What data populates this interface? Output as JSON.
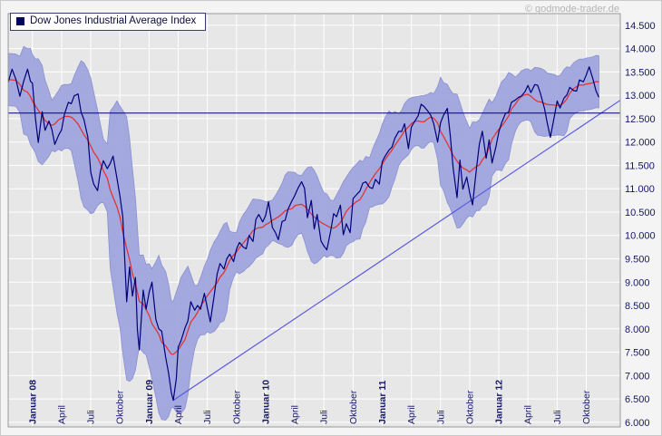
{
  "page": {
    "watermark": "© godmode-trader.de"
  },
  "legend": {
    "label": "Dow Jones Industrial Average Index"
  },
  "colors": {
    "outer_bg": "#f4f4f4",
    "plot_bg": "#e7e7e7",
    "grid": "#ffffff",
    "plot_border": "#9a9a9a",
    "price_line": "#000077",
    "ma_line": "#e03535",
    "band_fill": "#9ba1de",
    "band_stroke": "#8a90d0",
    "trend_line": "#5a5ae0",
    "level_line": "#00006e",
    "axis_label": "#15156a",
    "watermark": "#b4b4b4",
    "legend_marker": "#000066"
  },
  "chart_data": {
    "type": "line",
    "title": "Dow Jones Industrial Average Index",
    "xlabel": "",
    "ylabel": "",
    "grid": true,
    "legend_position": "top-left",
    "x_unit": "months_since_jan_2008",
    "x_range": [
      -2.5,
      60.5
    ],
    "y_range": [
      5900,
      14750
    ],
    "y_ticks": {
      "values": [
        6000,
        6500,
        7000,
        7500,
        8000,
        8500,
        9000,
        9500,
        10000,
        10500,
        11000,
        11500,
        12000,
        12500,
        13000,
        13500,
        14000,
        14500
      ],
      "labels": [
        "6.000",
        "6.500",
        "7.000",
        "7.500",
        "8.000",
        "8.500",
        "9.000",
        "9.500",
        "10.000",
        "10.500",
        "11.000",
        "11.500",
        "12.000",
        "12.500",
        "13.000",
        "13.500",
        "14.000",
        "14.500"
      ]
    },
    "x_ticks": [
      {
        "m": 0,
        "label": "Januar 08",
        "bold": true
      },
      {
        "m": 3,
        "label": "April",
        "bold": false
      },
      {
        "m": 6,
        "label": "Juli",
        "bold": false
      },
      {
        "m": 9,
        "label": "Oktober",
        "bold": false
      },
      {
        "m": 12,
        "label": "Januar 09",
        "bold": true
      },
      {
        "m": 15,
        "label": "April",
        "bold": false
      },
      {
        "m": 18,
        "label": "Juli",
        "bold": false
      },
      {
        "m": 21,
        "label": "Oktober",
        "bold": false
      },
      {
        "m": 24,
        "label": "Januar 10",
        "bold": true
      },
      {
        "m": 27,
        "label": "April",
        "bold": false
      },
      {
        "m": 30,
        "label": "Juli",
        "bold": false
      },
      {
        "m": 33,
        "label": "Oktober",
        "bold": false
      },
      {
        "m": 36,
        "label": "Januar 11",
        "bold": true
      },
      {
        "m": 39,
        "label": "April",
        "bold": false
      },
      {
        "m": 42,
        "label": "Juli",
        "bold": false
      },
      {
        "m": 45,
        "label": "Oktober",
        "bold": false
      },
      {
        "m": 48,
        "label": "Januar 12",
        "bold": true
      },
      {
        "m": 51,
        "label": "April",
        "bold": false
      },
      {
        "m": 54,
        "label": "Juli",
        "bold": false
      },
      {
        "m": 57,
        "label": "Oktober",
        "bold": false
      }
    ],
    "series": [
      {
        "name": "Dow Jones Industrial Average Index",
        "points": [
          [
            -2.5,
            13280
          ],
          [
            -2.1,
            13560
          ],
          [
            -1.7,
            13340
          ],
          [
            -1.3,
            12980
          ],
          [
            -0.9,
            13300
          ],
          [
            -0.5,
            13560
          ],
          [
            -0.2,
            13300
          ],
          [
            0,
            13260
          ],
          [
            0.3,
            12520
          ],
          [
            0.6,
            11990
          ],
          [
            1,
            12650
          ],
          [
            1.3,
            12250
          ],
          [
            1.7,
            12450
          ],
          [
            2,
            12270
          ],
          [
            2.3,
            11950
          ],
          [
            2.7,
            12150
          ],
          [
            3,
            12260
          ],
          [
            3.3,
            12600
          ],
          [
            3.7,
            12850
          ],
          [
            4,
            12820
          ],
          [
            4.3,
            12990
          ],
          [
            4.7,
            13030
          ],
          [
            5,
            12640
          ],
          [
            5.3,
            12480
          ],
          [
            5.7,
            12100
          ],
          [
            6,
            11350
          ],
          [
            6.3,
            11100
          ],
          [
            6.7,
            10960
          ],
          [
            7,
            11380
          ],
          [
            7.3,
            11600
          ],
          [
            7.7,
            11430
          ],
          [
            8,
            11540
          ],
          [
            8.3,
            11700
          ],
          [
            8.7,
            11220
          ],
          [
            9,
            10850
          ],
          [
            9.3,
            10400
          ],
          [
            9.7,
            8580
          ],
          [
            10,
            9325
          ],
          [
            10.3,
            8700
          ],
          [
            10.6,
            9100
          ],
          [
            10.8,
            7990
          ],
          [
            11,
            7550
          ],
          [
            11.4,
            8830
          ],
          [
            11.7,
            8420
          ],
          [
            12,
            8776
          ],
          [
            12.3,
            9000
          ],
          [
            12.7,
            8200
          ],
          [
            13,
            8000
          ],
          [
            13.3,
            7950
          ],
          [
            13.7,
            7400
          ],
          [
            14,
            7063
          ],
          [
            14.3,
            6630
          ],
          [
            14.5,
            6470
          ],
          [
            14.8,
            6930
          ],
          [
            15,
            7609
          ],
          [
            15.3,
            7750
          ],
          [
            15.7,
            8020
          ],
          [
            16,
            8170
          ],
          [
            16.3,
            8580
          ],
          [
            16.7,
            8400
          ],
          [
            17,
            8500
          ],
          [
            17.3,
            8420
          ],
          [
            17.7,
            8760
          ],
          [
            18,
            8450
          ],
          [
            18.3,
            8150
          ],
          [
            18.7,
            8700
          ],
          [
            19,
            9170
          ],
          [
            19.3,
            9400
          ],
          [
            19.7,
            9280
          ],
          [
            20,
            9500
          ],
          [
            20.3,
            9600
          ],
          [
            20.7,
            9440
          ],
          [
            21,
            9710
          ],
          [
            21.3,
            9850
          ],
          [
            21.7,
            9750
          ],
          [
            22,
            9713
          ],
          [
            22.3,
            10000
          ],
          [
            22.7,
            9870
          ],
          [
            23,
            10345
          ],
          [
            23.3,
            10450
          ],
          [
            23.7,
            10290
          ],
          [
            24,
            10428
          ],
          [
            24.3,
            10720
          ],
          [
            24.7,
            10170
          ],
          [
            25,
            10067
          ],
          [
            25.3,
            9910
          ],
          [
            25.7,
            10300
          ],
          [
            26,
            10325
          ],
          [
            26.3,
            10560
          ],
          [
            26.7,
            10740
          ],
          [
            27,
            10857
          ],
          [
            27.3,
            11000
          ],
          [
            27.7,
            11150
          ],
          [
            28,
            11009
          ],
          [
            28.3,
            10380
          ],
          [
            28.7,
            10750
          ],
          [
            29,
            10137
          ],
          [
            29.3,
            10450
          ],
          [
            29.7,
            9880
          ],
          [
            30,
            9774
          ],
          [
            30.3,
            9690
          ],
          [
            30.7,
            10100
          ],
          [
            31,
            10466
          ],
          [
            31.3,
            10400
          ],
          [
            31.7,
            10650
          ],
          [
            32,
            10015
          ],
          [
            32.3,
            10250
          ],
          [
            32.7,
            10060
          ],
          [
            33,
            10790
          ],
          [
            33.3,
            10860
          ],
          [
            33.7,
            10950
          ],
          [
            34,
            11118
          ],
          [
            34.3,
            11150
          ],
          [
            34.7,
            11030
          ],
          [
            35,
            11006
          ],
          [
            35.3,
            11200
          ],
          [
            35.7,
            11100
          ],
          [
            36,
            11578
          ],
          [
            36.3,
            11700
          ],
          [
            36.7,
            11830
          ],
          [
            37,
            11892
          ],
          [
            37.3,
            12080
          ],
          [
            37.7,
            12230
          ],
          [
            38,
            12226
          ],
          [
            38.3,
            12390
          ],
          [
            38.7,
            11860
          ],
          [
            39,
            12320
          ],
          [
            39.3,
            12430
          ],
          [
            39.7,
            12560
          ],
          [
            40,
            12810
          ],
          [
            40.3,
            12760
          ],
          [
            40.7,
            12660
          ],
          [
            41,
            12570
          ],
          [
            41.3,
            12390
          ],
          [
            41.7,
            12000
          ],
          [
            42,
            12414
          ],
          [
            42.3,
            12570
          ],
          [
            42.7,
            12720
          ],
          [
            43,
            12143
          ],
          [
            43.3,
            11440
          ],
          [
            43.7,
            10810
          ],
          [
            44,
            11614
          ],
          [
            44.3,
            10990
          ],
          [
            44.7,
            11250
          ],
          [
            45,
            10913
          ],
          [
            45.3,
            10655
          ],
          [
            45.7,
            11430
          ],
          [
            46,
            11955
          ],
          [
            46.3,
            12230
          ],
          [
            46.7,
            11650
          ],
          [
            47,
            12046
          ],
          [
            47.3,
            11550
          ],
          [
            47.7,
            11900
          ],
          [
            48,
            12218
          ],
          [
            48.3,
            12420
          ],
          [
            48.7,
            12620
          ],
          [
            49,
            12633
          ],
          [
            49.3,
            12850
          ],
          [
            49.7,
            12900
          ],
          [
            50,
            12952
          ],
          [
            50.3,
            12980
          ],
          [
            50.7,
            13080
          ],
          [
            51,
            13212
          ],
          [
            51.3,
            13060
          ],
          [
            51.7,
            13230
          ],
          [
            52,
            13214
          ],
          [
            52.3,
            13030
          ],
          [
            52.7,
            12720
          ],
          [
            53,
            12393
          ],
          [
            53.3,
            12100
          ],
          [
            53.7,
            12530
          ],
          [
            54,
            12880
          ],
          [
            54.3,
            12730
          ],
          [
            54.7,
            12940
          ],
          [
            55,
            13009
          ],
          [
            55.3,
            13170
          ],
          [
            55.7,
            13100
          ],
          [
            56,
            13091
          ],
          [
            56.3,
            13330
          ],
          [
            56.7,
            13290
          ],
          [
            57,
            13437
          ],
          [
            57.3,
            13610
          ],
          [
            57.7,
            13340
          ],
          [
            58,
            13096
          ],
          [
            58.3,
            12960
          ]
        ]
      }
    ],
    "overlays": {
      "moving_average": {
        "window": 11
      },
      "band": {
        "k": 2.0,
        "min_pct": 0.042
      },
      "level_line": {
        "value": 12620
      },
      "trend_line": {
        "from": [
          14.5,
          6470
        ],
        "to": [
          60.5,
          12895
        ]
      }
    }
  }
}
